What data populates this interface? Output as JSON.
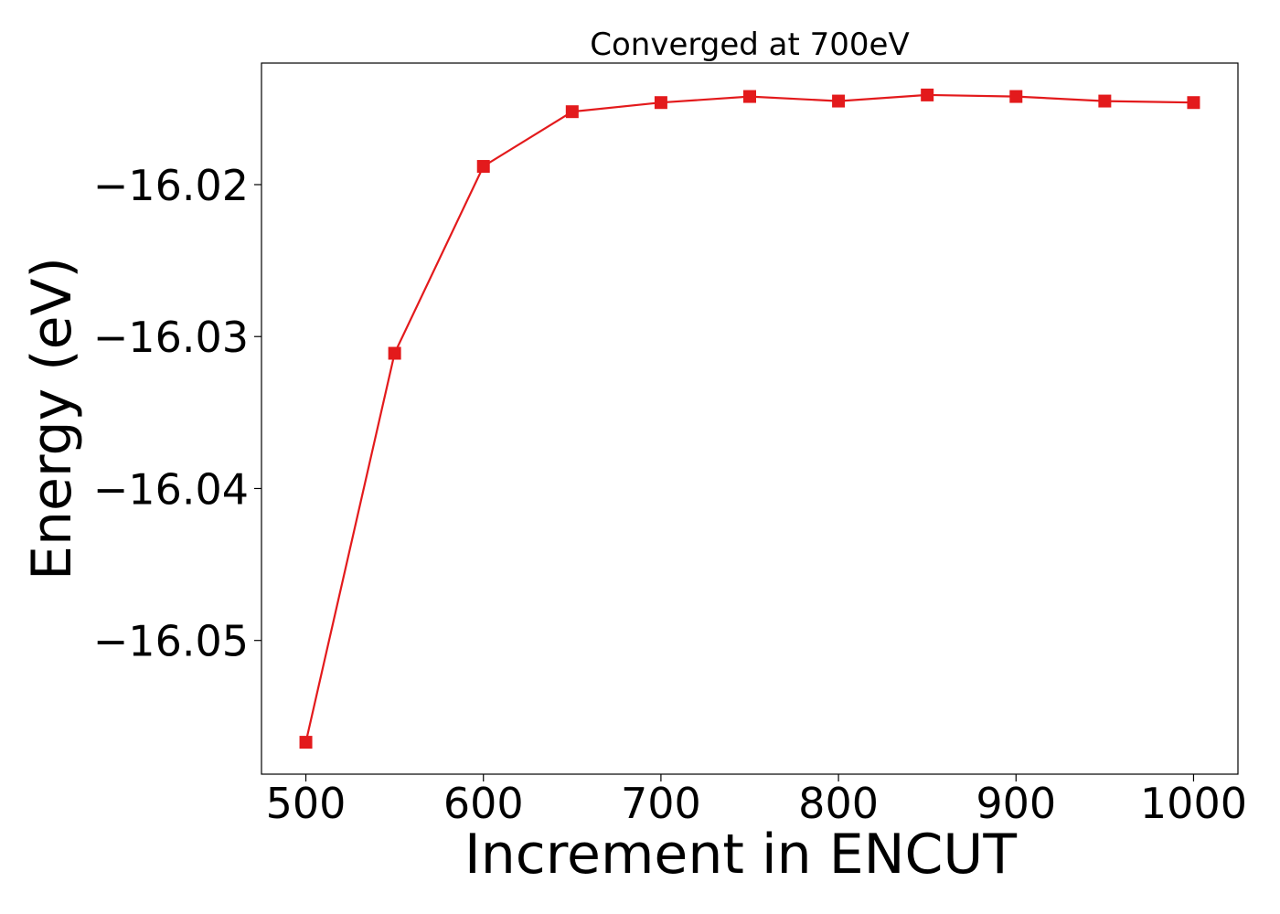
{
  "chart_data": {
    "type": "line",
    "title": "Converged at 700eV",
    "xlabel": "Increment in ENCUT",
    "ylabel": "Energy (eV)",
    "xlim": [
      475,
      1025
    ],
    "ylim": [
      -16.0588,
      -16.012
    ],
    "grid": false,
    "x_ticks": [
      500,
      600,
      700,
      800,
      900,
      1000
    ],
    "y_ticks": [
      -16.02,
      -16.03,
      -16.04,
      -16.05
    ],
    "series": [
      {
        "color": "#e31a1c",
        "marker": "square",
        "x": [
          500,
          550,
          600,
          650,
          700,
          750,
          800,
          850,
          900,
          950,
          1000
        ],
        "y": [
          -16.0567,
          -16.0311,
          -16.0188,
          -16.0152,
          -16.0146,
          -16.0142,
          -16.0145,
          -16.0141,
          -16.0142,
          -16.0145,
          -16.0146
        ]
      }
    ]
  }
}
